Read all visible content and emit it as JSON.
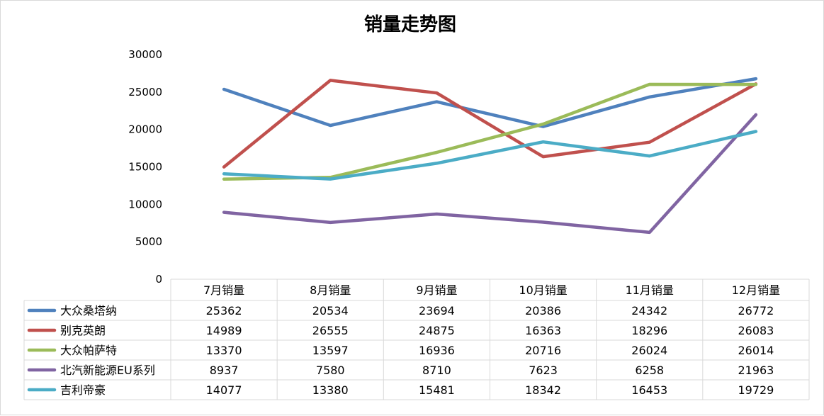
{
  "chart_data": {
    "type": "line",
    "title": "销量走势图",
    "categories": [
      "7月销量",
      "8月销量",
      "9月销量",
      "10月销量",
      "11月销量",
      "12月销量"
    ],
    "ylim": [
      0,
      30000
    ],
    "yticks": [
      0,
      5000,
      10000,
      15000,
      20000,
      25000,
      30000
    ],
    "grid": false,
    "legend": "data-table",
    "series": [
      {
        "name": "大众桑塔纳",
        "color": "#4f81bd",
        "values": [
          25362,
          20534,
          23694,
          20386,
          24342,
          26772
        ]
      },
      {
        "name": "别克英朗",
        "color": "#c0504d",
        "values": [
          14989,
          26555,
          24875,
          16363,
          18296,
          26083
        ]
      },
      {
        "name": "大众帕萨特",
        "color": "#9bbb59",
        "values": [
          13370,
          13597,
          16936,
          20716,
          26024,
          26014
        ]
      },
      {
        "name": "北汽新能源EU系列",
        "color": "#8064a2",
        "values": [
          8937,
          7580,
          8710,
          7623,
          6258,
          21963
        ]
      },
      {
        "name": "吉利帝豪",
        "color": "#4bacc6",
        "values": [
          14077,
          13380,
          15481,
          18342,
          16453,
          19729
        ]
      }
    ]
  }
}
